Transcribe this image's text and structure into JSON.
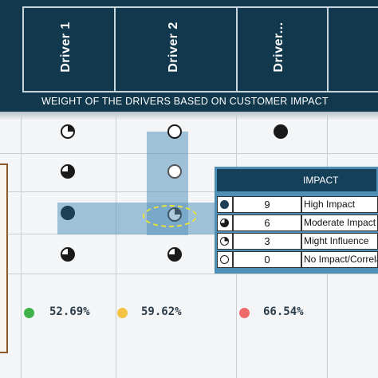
{
  "header": {
    "drivers": [
      "Driver 1",
      "Driver 2",
      "Driver..."
    ],
    "weight_band": "WEIGHT OF THE DRIVERS BASED ON CUSTOMER IMPACT"
  },
  "legend": {
    "title": "IMPACT",
    "rows": [
      {
        "icon": "full-harvey-ball-icon",
        "value": "9",
        "label": "High Impact"
      },
      {
        "icon": "three-quarter-harvey-ball-icon",
        "value": "6",
        "label": "Moderate Impact"
      },
      {
        "icon": "quarter-harvey-ball-icon",
        "value": "3",
        "label": "Might Influence"
      },
      {
        "icon": "empty-harvey-ball-icon",
        "value": "0",
        "label": "No Impact/Correlation"
      }
    ]
  },
  "scores": [
    {
      "value": "52.69%",
      "color": "#3fb24a"
    },
    {
      "value": "59.62%",
      "color": "#f3c341"
    },
    {
      "value": "66.54%",
      "color": "#ef6b6b"
    }
  ],
  "colors": {
    "header": "#11384d",
    "highlight": "#5a96be",
    "legend_frame": "#4f8fb5"
  }
}
